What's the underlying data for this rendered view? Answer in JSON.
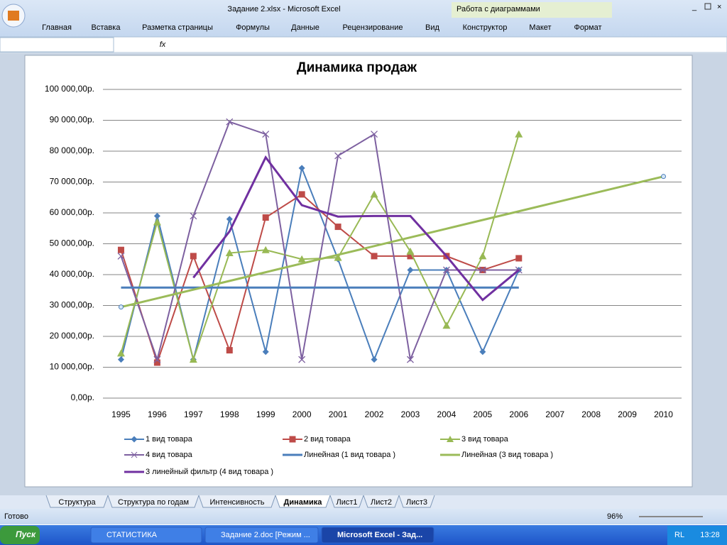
{
  "window": {
    "title": "Задание 2.xlsx - Microsoft Excel",
    "context_tab": "Работа с диаграммами"
  },
  "ribbon_tabs": [
    "Главная",
    "Вставка",
    "Разметка страницы",
    "Формулы",
    "Данные",
    "Рецензирование",
    "Вид",
    "Конструктор",
    "Макет",
    "Формат"
  ],
  "formula_bar": {
    "fx": "fx"
  },
  "chart_data": {
    "type": "line",
    "title": "Динамика продаж",
    "categories": [
      "1995",
      "1996",
      "1997",
      "1998",
      "1999",
      "2000",
      "2001",
      "2002",
      "2003",
      "2004",
      "2005",
      "2006",
      "2007",
      "2008",
      "2009",
      "2010"
    ],
    "ylim": [
      0,
      100000
    ],
    "yticks": [
      {
        "value": 0,
        "label": "0,00р."
      },
      {
        "value": 10000,
        "label": "10 000,00р."
      },
      {
        "value": 20000,
        "label": "20 000,00р."
      },
      {
        "value": 30000,
        "label": "30 000,00р."
      },
      {
        "value": 40000,
        "label": "40 000,00р."
      },
      {
        "value": 50000,
        "label": "50 000,00р."
      },
      {
        "value": 60000,
        "label": "60 000,00р."
      },
      {
        "value": 70000,
        "label": "70 000,00р."
      },
      {
        "value": 80000,
        "label": "80 000,00р."
      },
      {
        "value": 90000,
        "label": "90 000,00р."
      },
      {
        "value": 100000,
        "label": "100 000,00р."
      }
    ],
    "grid": true,
    "legend": "bottom",
    "series": [
      {
        "name": "1 вид товара",
        "color": "#4a7ebb",
        "marker": "diamond",
        "values": [
          12500,
          59000,
          12500,
          58000,
          15000,
          74500,
          45000,
          12500,
          41500,
          41500,
          15000,
          41500,
          null,
          null,
          null,
          null
        ]
      },
      {
        "name": "2 вид товара",
        "color": "#be4b48",
        "marker": "square",
        "values": [
          48000,
          11500,
          46000,
          15500,
          58500,
          66000,
          55500,
          46000,
          46000,
          46000,
          41500,
          45300,
          null,
          null,
          null,
          null
        ]
      },
      {
        "name": "3 вид товара",
        "color": "#98b954",
        "marker": "triangle",
        "values": [
          14500,
          57000,
          12500,
          47000,
          48000,
          45000,
          45500,
          66000,
          47500,
          23500,
          46000,
          85500,
          null,
          null,
          null,
          null
        ]
      },
      {
        "name": "4 вид товара",
        "color": "#7d60a0",
        "marker": "x",
        "values": [
          46000,
          12500,
          59000,
          89500,
          85500,
          12500,
          78500,
          85500,
          12500,
          41500,
          41500,
          41500,
          null,
          null,
          null,
          null
        ]
      },
      {
        "name": "Линейная (1 вид товара )",
        "color": "#4a7ebb",
        "marker": "none",
        "width": 3,
        "values": [
          35800,
          35800,
          35800,
          35800,
          35800,
          35800,
          35800,
          35800,
          35800,
          35800,
          35800,
          35800,
          null,
          null,
          null,
          null
        ]
      },
      {
        "name": "Линейная (3 вид товара )",
        "color": "#9bbb59",
        "marker": "ends",
        "width": 3,
        "values": [
          29500,
          32320,
          35140,
          37960,
          40780,
          43600,
          46420,
          49240,
          52060,
          54880,
          57700,
          60520,
          63340,
          66160,
          68980,
          71800
        ]
      },
      {
        "name": "3 линейный фильтр (4 вид товара )",
        "color": "#7030a0",
        "marker": "none",
        "width": 3,
        "values": [
          null,
          null,
          39000,
          54000,
          78000,
          62500,
          58800,
          59000,
          59000,
          46000,
          31800,
          41500,
          null,
          null,
          null,
          null
        ]
      }
    ]
  },
  "sheet_tabs": [
    "Структура",
    "Структура по годам",
    "Интенсивность",
    "Динамика",
    "Лист1",
    "Лист2",
    "Лист3"
  ],
  "active_sheet": 3,
  "status": {
    "ready": "Готово",
    "zoom": "96%"
  },
  "taskbar": {
    "start": "Пуск",
    "items": [
      "СТАТИСТИКА",
      "Задание 2.doc [Режим ...",
      "Microsoft Excel - Зад..."
    ],
    "lang": "RL",
    "clock": "13:28"
  }
}
